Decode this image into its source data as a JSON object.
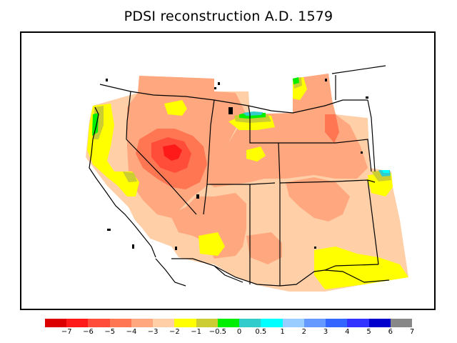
{
  "title": "PDSI reconstruction A.D. 1579",
  "colorbar": {
    "colors": [
      "#dd0000",
      "#ff1a1a",
      "#ff4d3a",
      "#ff7752",
      "#ffa77f",
      "#ffcfa8",
      "#ffff00",
      "#cccc33",
      "#00ee00",
      "#33cccc",
      "#00ffff",
      "#99ccff",
      "#6699ff",
      "#3366ff",
      "#3333ff",
      "#0000cc",
      "#888888"
    ],
    "labels": [
      "−7",
      "−6",
      "−5",
      "−4",
      "−3",
      "−2",
      "−1",
      "−0.5",
      "0",
      "0.5",
      "1",
      "2",
      "3",
      "4",
      "5",
      "6",
      "7"
    ]
  },
  "map": {
    "region": "western United States",
    "palette": {
      "dark_red": "#ff1a1a",
      "red": "#ff4d3a",
      "dark_orange": "#ff7752",
      "orange": "#ffa77f",
      "peach": "#ffcfa8",
      "yellow": "#ffff00",
      "olive": "#cccc33",
      "green": "#00ee00",
      "teal": "#33cccc",
      "cyan": "#00ffff"
    }
  }
}
